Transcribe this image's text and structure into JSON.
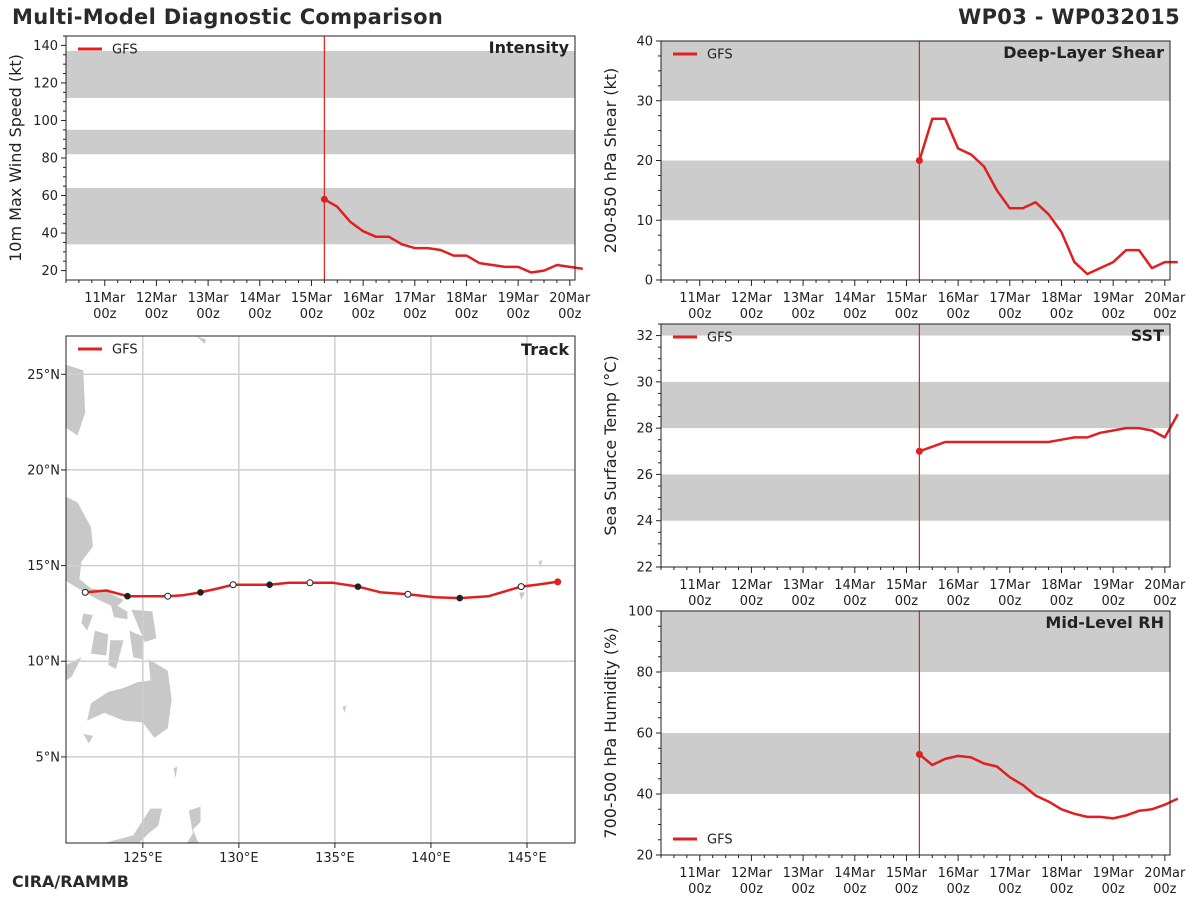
{
  "header": {
    "title_left": "Multi-Model Diagnostic Comparison",
    "title_right": "WP03 - WP032015",
    "footer": "CIRA/RAMMB"
  },
  "colors": {
    "series": "#e02020",
    "band": "#cccccc",
    "grid": "#cfcfcf",
    "land": "#c8c8c8"
  },
  "time_axis": {
    "ticks": [
      {
        "t": 0,
        "day": "11Mar",
        "hour": "00z"
      },
      {
        "t": 1,
        "day": "12Mar",
        "hour": "00z"
      },
      {
        "t": 2,
        "day": "13Mar",
        "hour": "00z"
      },
      {
        "t": 3,
        "day": "14Mar",
        "hour": "00z"
      },
      {
        "t": 4,
        "day": "15Mar",
        "hour": "00z"
      },
      {
        "t": 5,
        "day": "16Mar",
        "hour": "00z"
      },
      {
        "t": 6,
        "day": "17Mar",
        "hour": "00z"
      },
      {
        "t": 7,
        "day": "18Mar",
        "hour": "00z"
      },
      {
        "t": 8,
        "day": "19Mar",
        "hour": "00z"
      },
      {
        "t": 9,
        "day": "20Mar",
        "hour": "00z"
      }
    ],
    "range_days": [
      -0.75,
      9.1
    ],
    "init_time": 4.25
  },
  "chart_data": [
    {
      "id": "intensity",
      "type": "line",
      "title": "Intensity",
      "ylabel": "10m Max Wind Speed (kt)",
      "ylim": [
        15,
        145
      ],
      "yticks": [
        20,
        40,
        60,
        80,
        100,
        120,
        140
      ],
      "bands": [
        [
          34,
          64
        ],
        [
          82,
          95
        ],
        [
          112,
          137
        ]
      ],
      "legend": "GFS",
      "legend_position": "top-left",
      "series": [
        {
          "name": "GFS",
          "x": [
            4.25,
            4.5,
            4.75,
            5.0,
            5.25,
            5.5,
            5.75,
            6.0,
            6.25,
            6.5,
            6.75,
            7.0,
            7.25,
            7.5,
            7.75,
            8.0,
            8.25,
            8.5,
            8.75,
            9.0,
            9.25
          ],
          "y": [
            58,
            54,
            46,
            41,
            38,
            38,
            34,
            32,
            32,
            31,
            28,
            28,
            24,
            23,
            22,
            22,
            19,
            20,
            23,
            22,
            21
          ]
        }
      ]
    },
    {
      "id": "shear",
      "type": "line",
      "title": "Deep-Layer Shear",
      "ylabel": "200-850 hPa Shear (kt)",
      "ylim": [
        0,
        40
      ],
      "yticks": [
        0,
        10,
        20,
        30,
        40
      ],
      "bands": [
        [
          10,
          20
        ],
        [
          30,
          40
        ]
      ],
      "legend": "GFS",
      "legend_position": "top-left",
      "series": [
        {
          "name": "GFS",
          "x": [
            4.25,
            4.5,
            4.75,
            5.0,
            5.25,
            5.5,
            5.75,
            6.0,
            6.25,
            6.5,
            6.75,
            7.0,
            7.25,
            7.5,
            7.75,
            8.0,
            8.25,
            8.5,
            8.75,
            9.0,
            9.25
          ],
          "y": [
            20,
            27,
            27,
            22,
            21,
            19,
            15,
            12,
            12,
            13,
            11,
            8,
            3,
            1,
            2,
            3,
            5,
            5,
            2,
            3,
            3
          ]
        }
      ]
    },
    {
      "id": "sst",
      "type": "line",
      "title": "SST",
      "ylabel": "Sea Surface Temp (°C)",
      "ylim": [
        22,
        32.5
      ],
      "yticks": [
        22,
        24,
        26,
        28,
        30,
        32
      ],
      "bands": [
        [
          24,
          26
        ],
        [
          28,
          30
        ],
        [
          32,
          32.5
        ]
      ],
      "legend": "GFS",
      "legend_position": "top-left",
      "series": [
        {
          "name": "GFS",
          "x": [
            4.25,
            4.5,
            4.75,
            5.0,
            5.25,
            5.5,
            5.75,
            6.0,
            6.25,
            6.5,
            6.75,
            7.0,
            7.25,
            7.5,
            7.75,
            8.0,
            8.25,
            8.5,
            8.75,
            9.0,
            9.25
          ],
          "y": [
            27.0,
            27.2,
            27.4,
            27.4,
            27.4,
            27.4,
            27.4,
            27.4,
            27.4,
            27.4,
            27.4,
            27.5,
            27.6,
            27.6,
            27.8,
            27.9,
            28.0,
            28.0,
            27.9,
            27.6,
            28.6
          ]
        }
      ]
    },
    {
      "id": "rh",
      "type": "line",
      "title": "Mid-Level RH",
      "ylabel": "700-500 hPa Humidity (%)",
      "ylim": [
        20,
        100
      ],
      "yticks": [
        20,
        40,
        60,
        80,
        100
      ],
      "bands": [
        [
          40,
          60
        ],
        [
          80,
          100
        ]
      ],
      "legend": "GFS",
      "legend_position": "bottom-left",
      "series": [
        {
          "name": "GFS",
          "x": [
            4.25,
            4.5,
            4.75,
            5.0,
            5.25,
            5.5,
            5.75,
            6.0,
            6.25,
            6.5,
            6.75,
            7.0,
            7.25,
            7.5,
            7.75,
            8.0,
            8.25,
            8.5,
            8.75,
            9.0,
            9.25
          ],
          "y": [
            53,
            49.5,
            51.5,
            52.5,
            52,
            50,
            49,
            45.5,
            43,
            39.5,
            37.5,
            35,
            33.5,
            32.5,
            32.5,
            32,
            33,
            34.5,
            35,
            36.5,
            38.5
          ]
        }
      ]
    },
    {
      "id": "track",
      "type": "scatter",
      "title": "Track",
      "legend": "GFS",
      "legend_position": "top-left",
      "lon_range": [
        121,
        147.5
      ],
      "lat_range": [
        0.5,
        27
      ],
      "lon_ticks": [
        {
          "v": 125,
          "label": "125°E"
        },
        {
          "v": 130,
          "label": "130°E"
        },
        {
          "v": 135,
          "label": "135°E"
        },
        {
          "v": 140,
          "label": "140°E"
        },
        {
          "v": 145,
          "label": "145°E"
        }
      ],
      "lat_ticks": [
        {
          "v": 5,
          "label": "5°N"
        },
        {
          "v": 10,
          "label": "10°N"
        },
        {
          "v": 15,
          "label": "15°N"
        },
        {
          "v": 20,
          "label": "20°N"
        },
        {
          "v": 25,
          "label": "25°N"
        }
      ],
      "series": [
        {
          "name": "GFS",
          "lon": [
            146.6,
            145.5,
            144.7,
            143.0,
            141.5,
            140.2,
            138.8,
            137.4,
            136.2,
            134.9,
            133.7,
            132.6,
            131.6,
            130.6,
            129.7,
            128.9,
            128.0,
            127.1,
            126.3,
            125.2,
            124.2,
            123.1,
            122.0
          ],
          "lat": [
            14.15,
            14.0,
            13.9,
            13.4,
            13.3,
            13.35,
            13.5,
            13.6,
            13.9,
            14.1,
            14.1,
            14.1,
            14.0,
            14.0,
            14.0,
            13.8,
            13.6,
            13.45,
            13.4,
            13.4,
            13.4,
            13.7,
            13.6
          ]
        }
      ],
      "markers": [
        {
          "lon": 146.6,
          "lat": 14.15,
          "fill": "red"
        },
        {
          "lon": 144.7,
          "lat": 13.9,
          "fill": "open"
        },
        {
          "lon": 141.5,
          "lat": 13.3,
          "fill": "filled"
        },
        {
          "lon": 138.8,
          "lat": 13.5,
          "fill": "open"
        },
        {
          "lon": 136.2,
          "lat": 13.9,
          "fill": "filled"
        },
        {
          "lon": 133.7,
          "lat": 14.1,
          "fill": "open"
        },
        {
          "lon": 131.6,
          "lat": 14.0,
          "fill": "filled"
        },
        {
          "lon": 129.7,
          "lat": 14.0,
          "fill": "open"
        },
        {
          "lon": 128.0,
          "lat": 13.6,
          "fill": "filled"
        },
        {
          "lon": 126.3,
          "lat": 13.4,
          "fill": "open"
        },
        {
          "lon": 124.2,
          "lat": 13.4,
          "fill": "filled"
        },
        {
          "lon": 122.0,
          "lat": 13.6,
          "fill": "open"
        }
      ]
    }
  ]
}
